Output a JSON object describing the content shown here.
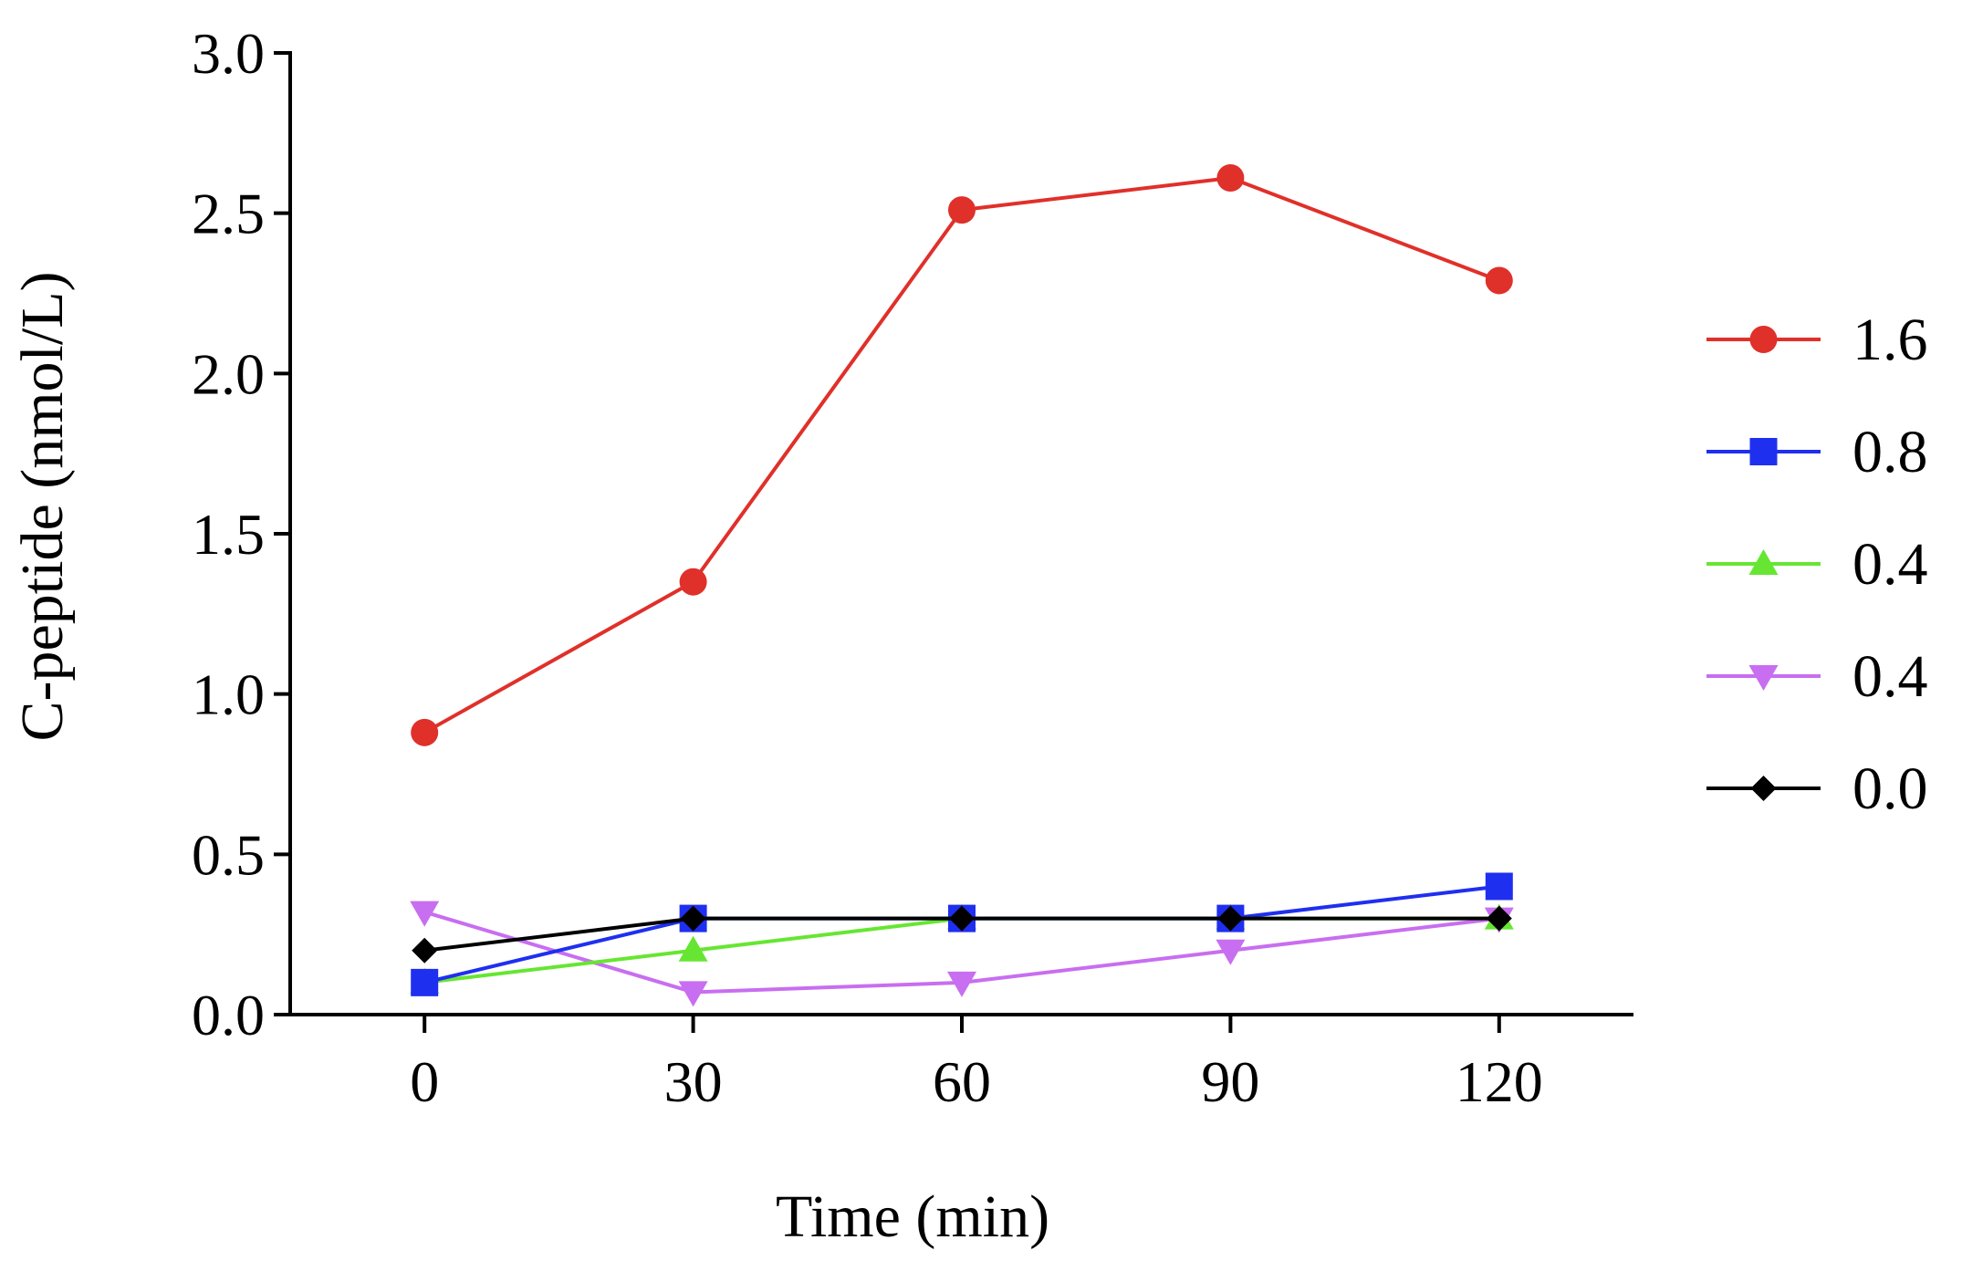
{
  "chart_data": {
    "type": "line",
    "title": "",
    "xlabel": "Time (min)",
    "ylabel": "C-peptide (nmol/L)",
    "x": [
      0,
      30,
      60,
      90,
      120
    ],
    "xlim": [
      -15,
      135
    ],
    "ylim": [
      0.0,
      3.0
    ],
    "xticks": [
      "0",
      "30",
      "60",
      "90",
      "120"
    ],
    "yticks": [
      "0.0",
      "0.5",
      "1.0",
      "1.5",
      "2.0",
      "2.5",
      "3.0"
    ],
    "grid": false,
    "legend_position": "right",
    "series": [
      {
        "name": "1.6",
        "color": "#e0302a",
        "marker": "circle",
        "values": [
          0.88,
          1.35,
          2.51,
          2.61,
          2.29
        ]
      },
      {
        "name": "0.8",
        "color": "#1f2ff0",
        "marker": "square",
        "values": [
          0.1,
          0.3,
          0.3,
          0.3,
          0.4
        ]
      },
      {
        "name": "0.4",
        "color": "#66e632",
        "marker": "triangle-up",
        "values": [
          0.1,
          0.2,
          0.3,
          0.3,
          0.3
        ]
      },
      {
        "name": "0.4",
        "color": "#c86ef0",
        "marker": "triangle-down",
        "values": [
          0.32,
          0.07,
          0.1,
          0.2,
          0.3
        ]
      },
      {
        "name": "0.0",
        "color": "#000000",
        "marker": "diamond",
        "values": [
          0.2,
          0.3,
          0.3,
          0.3,
          0.3
        ]
      }
    ]
  }
}
